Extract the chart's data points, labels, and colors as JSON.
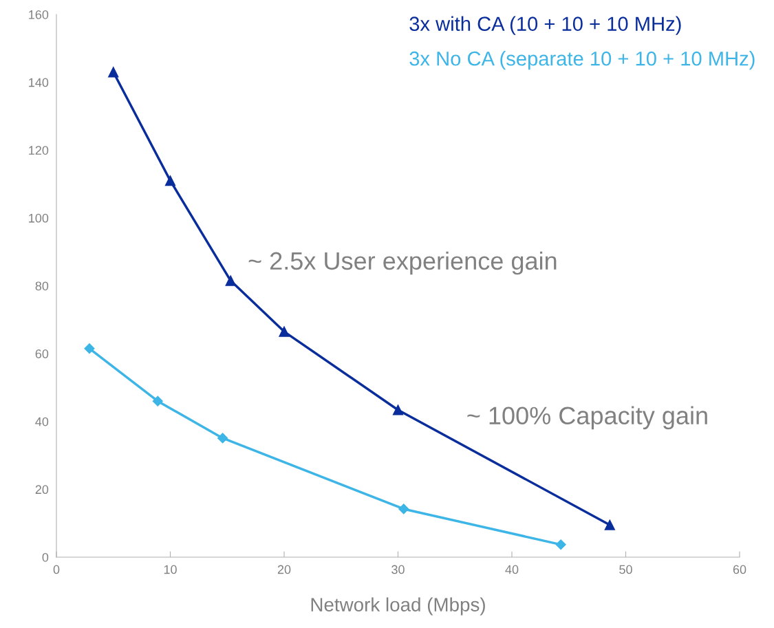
{
  "chart_data": {
    "type": "line",
    "xlabel": "Network load (Mbps)",
    "xlim": [
      0,
      60
    ],
    "xticks": [
      0,
      10,
      20,
      30,
      40,
      50,
      60
    ],
    "ylim": [
      0,
      160
    ],
    "yticks": [
      0,
      20,
      40,
      60,
      80,
      100,
      120,
      140,
      160
    ],
    "grid": false,
    "legend": "top right",
    "line_style": "solid",
    "series": [
      {
        "name": "3x with CA (10 + 10 + 10 MHz)",
        "color": "#0a2d9c",
        "marker": "triangle",
        "x": [
          5.0,
          10.0,
          15.3,
          20.0,
          30.0,
          48.6
        ],
        "values": [
          143,
          111,
          81.5,
          66.5,
          43.4,
          9.5
        ]
      },
      {
        "name": "3x No CA (separate 10 + 10 + 10 MHz)",
        "color": "#3db5e6",
        "marker": "diamond",
        "x": [
          2.9,
          8.9,
          14.6,
          30.5,
          44.3
        ],
        "values": [
          61.5,
          46,
          35.1,
          14.2,
          3.7
        ]
      }
    ],
    "annotations": [
      "~ 2.5x User experience gain",
      "~ 100% Capacity gain"
    ]
  }
}
